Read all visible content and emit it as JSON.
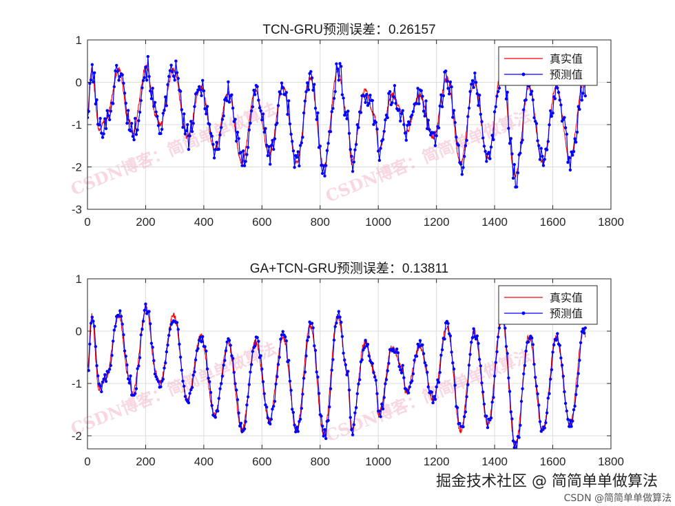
{
  "chart_data": [
    {
      "type": "line",
      "title": "TCN-GRU预测误差：0.26157",
      "xlim": [
        0,
        1800
      ],
      "ylim": [
        -3,
        1
      ],
      "xticks": [
        0,
        200,
        400,
        600,
        800,
        1000,
        1200,
        1400,
        1600,
        1800
      ],
      "yticks": [
        -3,
        -2,
        -1,
        0,
        1
      ],
      "grid": true,
      "legend_position": "top-right",
      "x_max": 1712,
      "series": [
        {
          "name": "真实值",
          "color": "#ff0000",
          "marker": "none",
          "peaks": [
            0.3,
            0.35,
            0.3,
            -0.1,
            -0.25,
            -0.2,
            -0.1,
            0.1,
            0.3,
            -0.2,
            -0.3,
            -0.3,
            0.1,
            0.0,
            0.3,
            -0.1,
            -0.1,
            0.0
          ],
          "troughs": [
            -1.2,
            -1.0,
            -1.3,
            -1.6,
            -1.9,
            -1.7,
            -1.9,
            -2.0,
            -1.9,
            -1.6,
            -1.2,
            -1.3,
            -1.9,
            -1.8,
            -2.2,
            -1.9,
            -1.8,
            -1.9
          ],
          "shoulders": [
            -0.9,
            -0.8,
            null,
            null,
            null,
            null,
            null,
            null,
            -0.8,
            -0.8,
            -0.7,
            null,
            null,
            null,
            null,
            null,
            null,
            null
          ]
        },
        {
          "name": "预测值",
          "color": "#0000ff",
          "marker": "dot",
          "noise": 0.3
        }
      ]
    },
    {
      "type": "line",
      "title": "GA+TCN-GRU预测误差：0.13811",
      "xlim": [
        0,
        1800
      ],
      "ylim": [
        -2.25,
        1
      ],
      "xticks": [
        0,
        200,
        400,
        600,
        800,
        1000,
        1200,
        1400,
        1600,
        1800
      ],
      "yticks": [
        -2,
        -1,
        0,
        1
      ],
      "grid": true,
      "legend_position": "top-right",
      "x_max": 1712,
      "series": [
        {
          "name": "真实值",
          "color": "#ff0000",
          "marker": "none",
          "peaks": [
            0.3,
            0.45,
            0.3,
            -0.1,
            -0.25,
            -0.2,
            -0.1,
            0.1,
            0.3,
            -0.2,
            -0.3,
            -0.3,
            0.1,
            0.0,
            0.3,
            -0.1,
            -0.1,
            0.0
          ],
          "troughs": [
            -1.2,
            -1.0,
            -1.3,
            -1.6,
            -1.9,
            -1.7,
            -1.9,
            -2.0,
            -1.9,
            -1.6,
            -1.2,
            -1.3,
            -1.9,
            -1.8,
            -2.2,
            -1.9,
            -1.8,
            -1.9
          ],
          "shoulders": [
            -0.9,
            -0.8,
            null,
            null,
            null,
            null,
            null,
            null,
            -0.8,
            -0.8,
            -0.7,
            null,
            null,
            null,
            null,
            null,
            null,
            null
          ]
        },
        {
          "name": "预测值",
          "color": "#0000ff",
          "marker": "dot",
          "noise": 0.12
        }
      ]
    }
  ],
  "watermarks": {
    "main": "掘金技术社区 @ 简简单单做算法",
    "sub": "CSDN @简简单单做算法",
    "background": "CSDN博客：简简单单做算法"
  }
}
